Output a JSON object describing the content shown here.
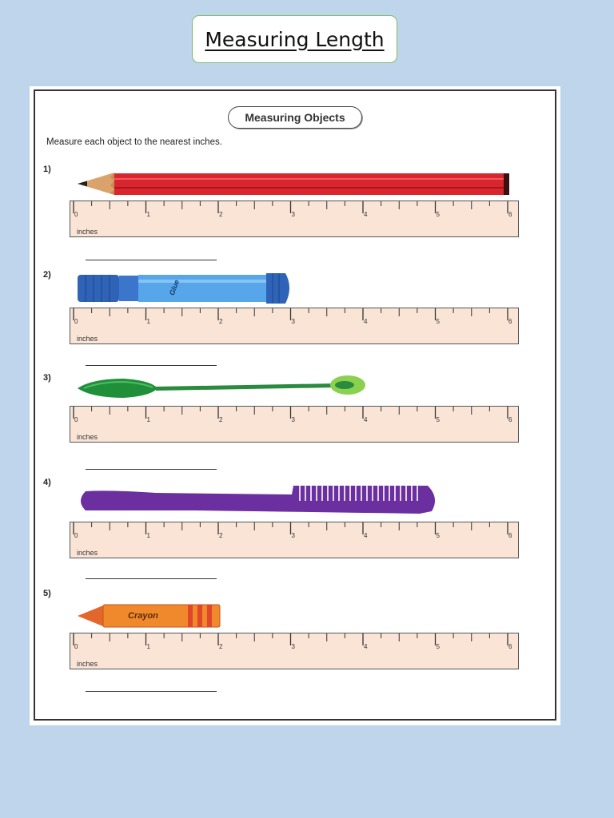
{
  "page_title": "Measuring Length",
  "worksheet": {
    "title": "Measuring Objects",
    "instructions": "Measure each object to the nearest inches."
  },
  "ruler": {
    "unit_label": "inches",
    "tick_labels": [
      "0",
      "1",
      "2",
      "3",
      "4",
      "5",
      "6"
    ]
  },
  "questions": [
    {
      "number": "1)",
      "object": "pencil",
      "object_label": ""
    },
    {
      "number": "2)",
      "object": "glue stick",
      "object_label": "Glue"
    },
    {
      "number": "3)",
      "object": "spoon",
      "object_label": ""
    },
    {
      "number": "4)",
      "object": "comb",
      "object_label": ""
    },
    {
      "number": "5)",
      "object": "crayon",
      "object_label": "Crayon"
    }
  ],
  "colors": {
    "background": "#bed5ec",
    "title_border": "#7fbf6a",
    "ruler_fill": "#fae4d6",
    "pencil": "#d9262e",
    "glue": "#3f7fd0",
    "spoon": "#1f8f3a",
    "comb": "#6b2fa0",
    "crayon": "#f0892b"
  }
}
